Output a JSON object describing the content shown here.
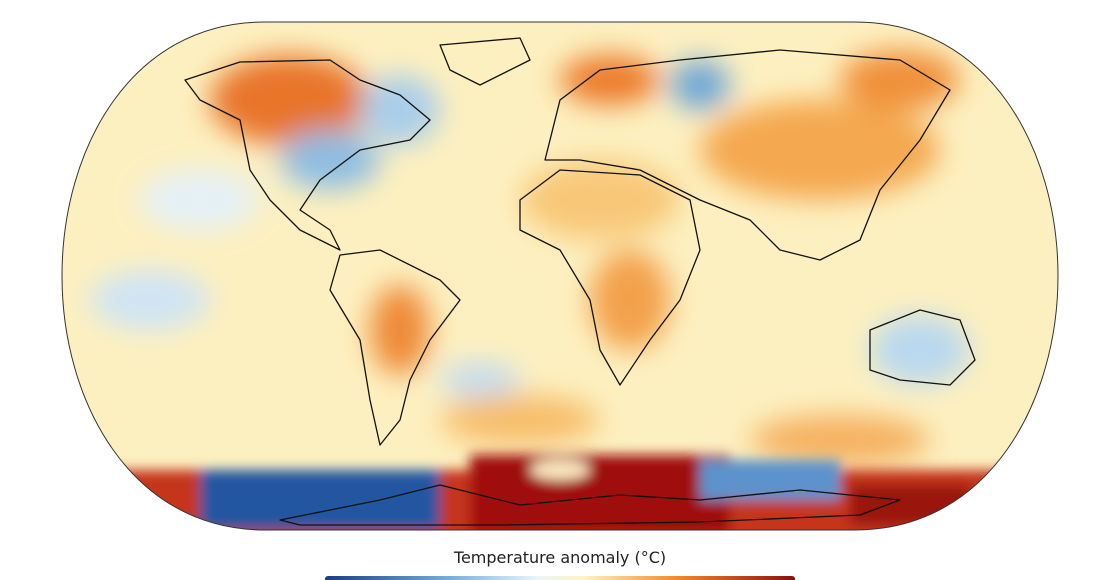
{
  "legend": {
    "title": "Temperature anomaly (°C)"
  }
}
